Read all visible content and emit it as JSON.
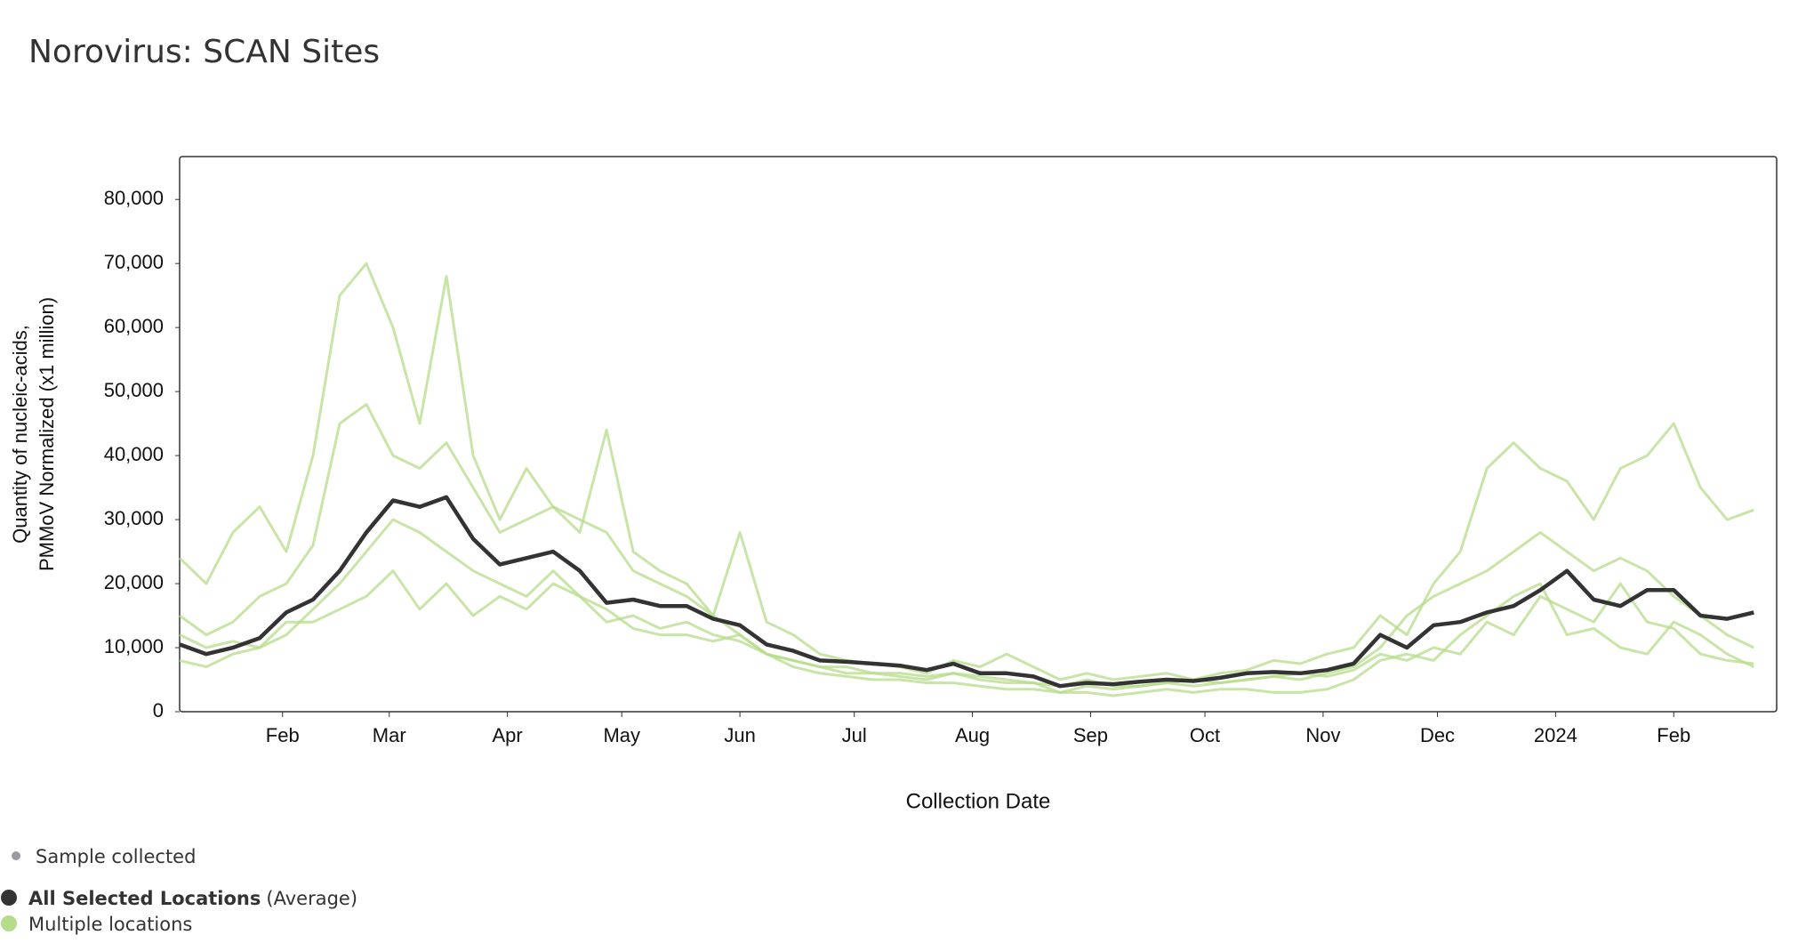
{
  "chart_data": {
    "type": "line",
    "title": "Norovirus: SCAN Sites",
    "y_label": [
      "Quantity of nucleic-acids,",
      "PMMoV Normalized (x1 million)"
    ],
    "x_label": "Collection Date",
    "sample_legend": "Sample collected",
    "xlim": [
      "2023-01-05",
      "2024-02-28"
    ],
    "xticks": [
      {
        "value": "2023-02-01",
        "label": "Feb"
      },
      {
        "value": "2023-03-01",
        "label": "Mar"
      },
      {
        "value": "2023-04-01",
        "label": "Apr"
      },
      {
        "value": "2023-05-01",
        "label": "May"
      },
      {
        "value": "2023-06-01",
        "label": "Jun"
      },
      {
        "value": "2023-07-01",
        "label": "Jul"
      },
      {
        "value": "2023-08-01",
        "label": "Aug"
      },
      {
        "value": "2023-09-01",
        "label": "Sep"
      },
      {
        "value": "2023-10-01",
        "label": "Oct"
      },
      {
        "value": "2023-11-01",
        "label": "Nov"
      },
      {
        "value": "2023-12-01",
        "label": "Dec"
      },
      {
        "value": "2024-01-01",
        "label": "2024"
      },
      {
        "value": "2024-02-01",
        "label": "Feb"
      }
    ],
    "ylim": [
      0,
      86700
    ],
    "yticks": [
      0,
      {
        "value": 10000,
        "label": "10,000"
      },
      {
        "value": 20000,
        "label": "20,000"
      },
      {
        "value": 30000,
        "label": "30,000"
      },
      {
        "value": 40000,
        "label": "40,000"
      },
      {
        "value": 50000,
        "label": "50,000"
      },
      {
        "value": 60000,
        "label": "60,000"
      },
      {
        "value": 70000,
        "label": "70,000"
      },
      {
        "value": 80000,
        "label": "80,000"
      }
    ],
    "x": [
      "2023-01-05",
      "2023-01-12",
      "2023-01-19",
      "2023-01-26",
      "2023-02-02",
      "2023-02-09",
      "2023-02-16",
      "2023-02-23",
      "2023-03-02",
      "2023-03-09",
      "2023-03-16",
      "2023-03-23",
      "2023-03-30",
      "2023-04-06",
      "2023-04-13",
      "2023-04-20",
      "2023-04-27",
      "2023-05-04",
      "2023-05-11",
      "2023-05-18",
      "2023-05-25",
      "2023-06-01",
      "2023-06-08",
      "2023-06-15",
      "2023-06-22",
      "2023-06-29",
      "2023-07-06",
      "2023-07-13",
      "2023-07-20",
      "2023-07-27",
      "2023-08-03",
      "2023-08-10",
      "2023-08-17",
      "2023-08-24",
      "2023-08-31",
      "2023-09-07",
      "2023-09-14",
      "2023-09-21",
      "2023-09-28",
      "2023-10-05",
      "2023-10-12",
      "2023-10-19",
      "2023-10-26",
      "2023-11-02",
      "2023-11-09",
      "2023-11-16",
      "2023-11-23",
      "2023-11-30",
      "2023-12-07",
      "2023-12-14",
      "2023-12-21",
      "2023-12-28",
      "2024-01-04",
      "2024-01-11",
      "2024-01-18",
      "2024-01-25",
      "2024-02-01",
      "2024-02-08",
      "2024-02-15",
      "2024-02-22"
    ],
    "series": [
      {
        "name": "Multiple locations",
        "color": "#b5dc8a",
        "lines": [
          [
            24000,
            20000,
            28000,
            32000,
            25000,
            40000,
            65000,
            70000,
            60000,
            45000,
            68000,
            40000,
            30000,
            38000,
            32000,
            28000,
            44000,
            25000,
            22000,
            20000,
            15000,
            28000,
            14000,
            12000,
            9000,
            8000,
            7500,
            7000,
            6000,
            8000,
            7000,
            9000,
            7000,
            5000,
            6000,
            5000,
            5500,
            6000,
            5000,
            6000,
            6500,
            8000,
            7500,
            9000,
            10000,
            15000,
            12000,
            20000,
            25000,
            38000,
            42000,
            38000,
            36000,
            30000,
            38000,
            40000,
            45000,
            35000,
            30000,
            31500
          ],
          [
            15000,
            12000,
            14000,
            18000,
            20000,
            26000,
            45000,
            48000,
            40000,
            38000,
            42000,
            35000,
            28000,
            30000,
            32000,
            30000,
            28000,
            22000,
            20000,
            18000,
            15000,
            12000,
            9000,
            8000,
            7000,
            6000,
            6000,
            5500,
            5000,
            6000,
            5000,
            4500,
            4500,
            3000,
            4000,
            3500,
            4000,
            4500,
            4000,
            4500,
            5000,
            5500,
            5000,
            6000,
            7000,
            10000,
            15000,
            18000,
            20000,
            22000,
            25000,
            28000,
            25000,
            22000,
            24000,
            22000,
            18000,
            15000,
            12000,
            10000
          ],
          [
            8000,
            7000,
            9000,
            10000,
            12000,
            16000,
            20000,
            25000,
            30000,
            28000,
            25000,
            22000,
            20000,
            18000,
            22000,
            18000,
            14000,
            15000,
            13000,
            14000,
            12000,
            11000,
            9000,
            7000,
            6000,
            5500,
            5000,
            5000,
            4500,
            4500,
            4000,
            3500,
            3500,
            3000,
            3000,
            2500,
            3000,
            3500,
            3000,
            3500,
            3500,
            3000,
            3000,
            3500,
            5000,
            8000,
            9000,
            8000,
            12000,
            15000,
            18000,
            20000,
            12000,
            13000,
            10000,
            9000,
            14000,
            12000,
            9000,
            7000
          ],
          [
            12000,
            10000,
            11000,
            10000,
            14000,
            14000,
            16000,
            18000,
            22000,
            16000,
            20000,
            15000,
            18000,
            16000,
            20000,
            18000,
            16000,
            13000,
            12000,
            12000,
            11000,
            12000,
            9000,
            8000,
            7000,
            7000,
            6000,
            6000,
            5500,
            6000,
            5500,
            5000,
            4500,
            4000,
            5000,
            4000,
            4000,
            4500,
            5000,
            4500,
            5000,
            5500,
            6000,
            5500,
            6500,
            9000,
            8000,
            10000,
            9000,
            14000,
            12000,
            18000,
            16000,
            14000,
            20000,
            14000,
            13000,
            9000,
            8000,
            7500
          ]
        ]
      },
      {
        "name": "All Selected Locations",
        "note": "(Average)",
        "color": "#333333",
        "values": [
          10500,
          9000,
          10000,
          11500,
          15500,
          17500,
          22000,
          28000,
          33000,
          32000,
          33500,
          27000,
          23000,
          24000,
          25000,
          22000,
          17000,
          17500,
          16500,
          16500,
          14500,
          13500,
          10500,
          9500,
          8000,
          7800,
          7500,
          7200,
          6500,
          7500,
          6000,
          6000,
          5500,
          4000,
          4500,
          4300,
          4700,
          5000,
          4800,
          5300,
          6000,
          6200,
          6000,
          6500,
          7500,
          12000,
          10000,
          13500,
          14000,
          15500,
          16500,
          19000,
          22000,
          17500,
          16500,
          19000,
          19000,
          15000,
          14500,
          15500
        ]
      }
    ]
  }
}
